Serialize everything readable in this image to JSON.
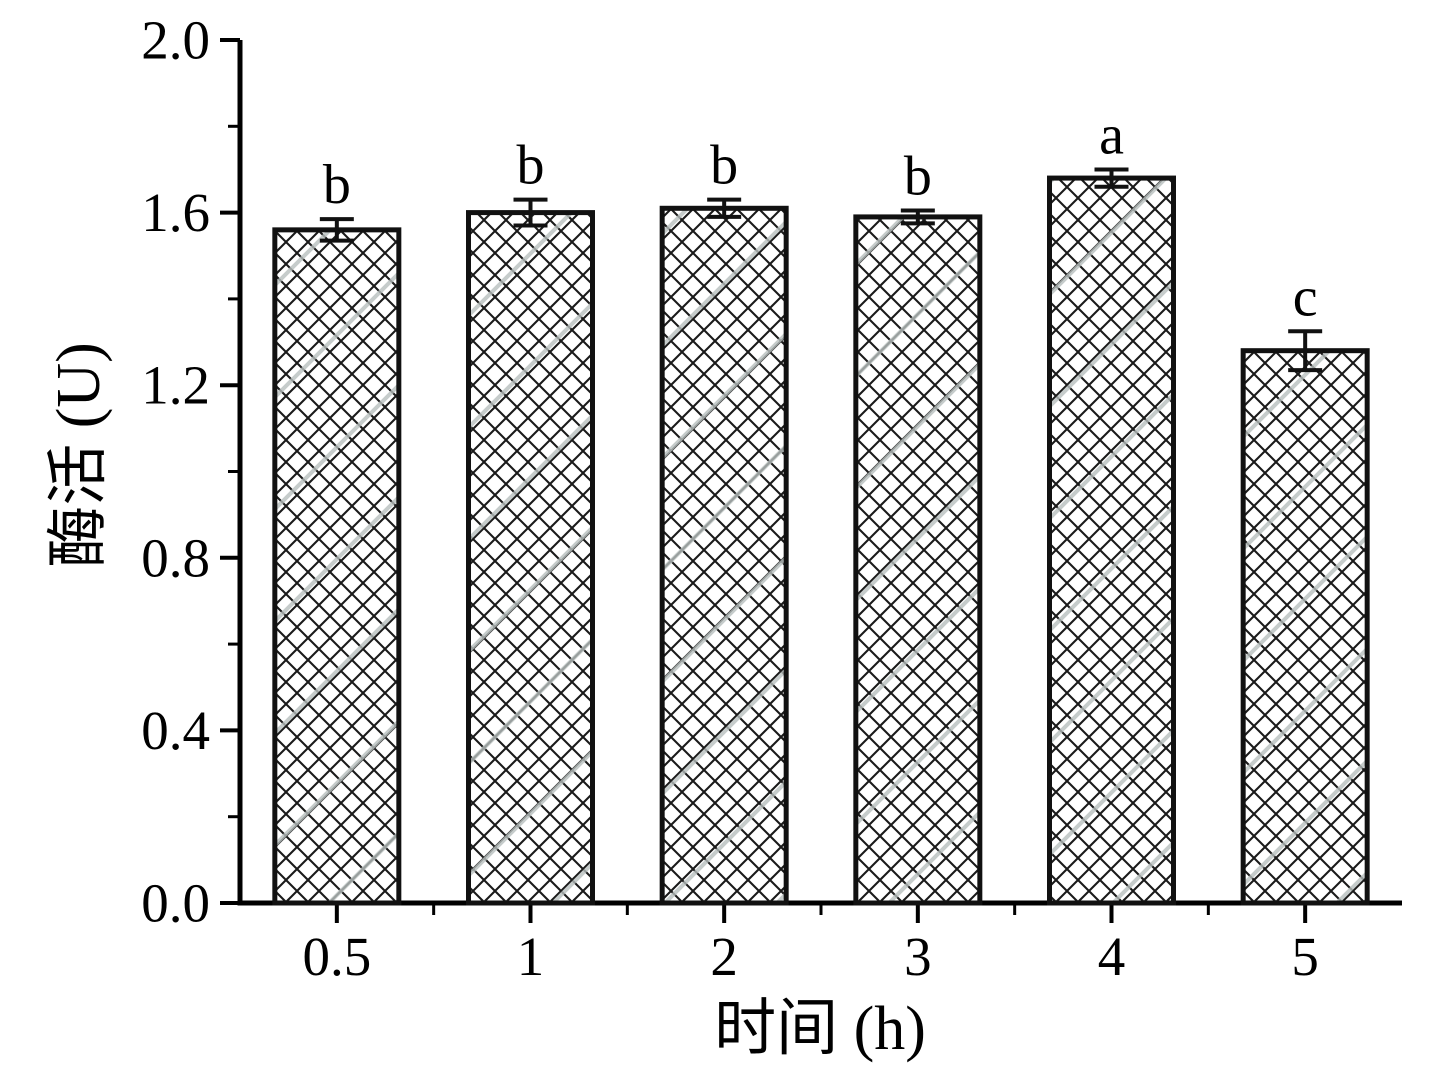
{
  "chart_data": {
    "type": "bar",
    "title": "",
    "xlabel": "时间 (h)",
    "ylabel": "酶活 (U)",
    "categories": [
      "0.5",
      "1",
      "2",
      "3",
      "4",
      "5"
    ],
    "values": [
      1.56,
      1.6,
      1.61,
      1.59,
      1.68,
      1.28
    ],
    "errors": [
      0.025,
      0.03,
      0.02,
      0.015,
      0.02,
      0.045
    ],
    "sig_letters": [
      "b",
      "b",
      "b",
      "b",
      "a",
      "c"
    ],
    "ylim": [
      0.0,
      2.0
    ],
    "yticks": [
      0.0,
      0.4,
      0.8,
      1.2,
      1.6,
      2.0
    ],
    "ytick_labels": [
      "0.0",
      "0.4",
      "0.8",
      "1.2",
      "1.6",
      "2.0"
    ],
    "grid": false,
    "legend": "none",
    "bar_fill": "crosshatch-pattern",
    "colors": {
      "axis": "#000000",
      "bar_edge": "#111111",
      "hatch": "#1a1a1a",
      "hatch_accent": "#b8bfbe",
      "background": "#ffffff"
    }
  }
}
